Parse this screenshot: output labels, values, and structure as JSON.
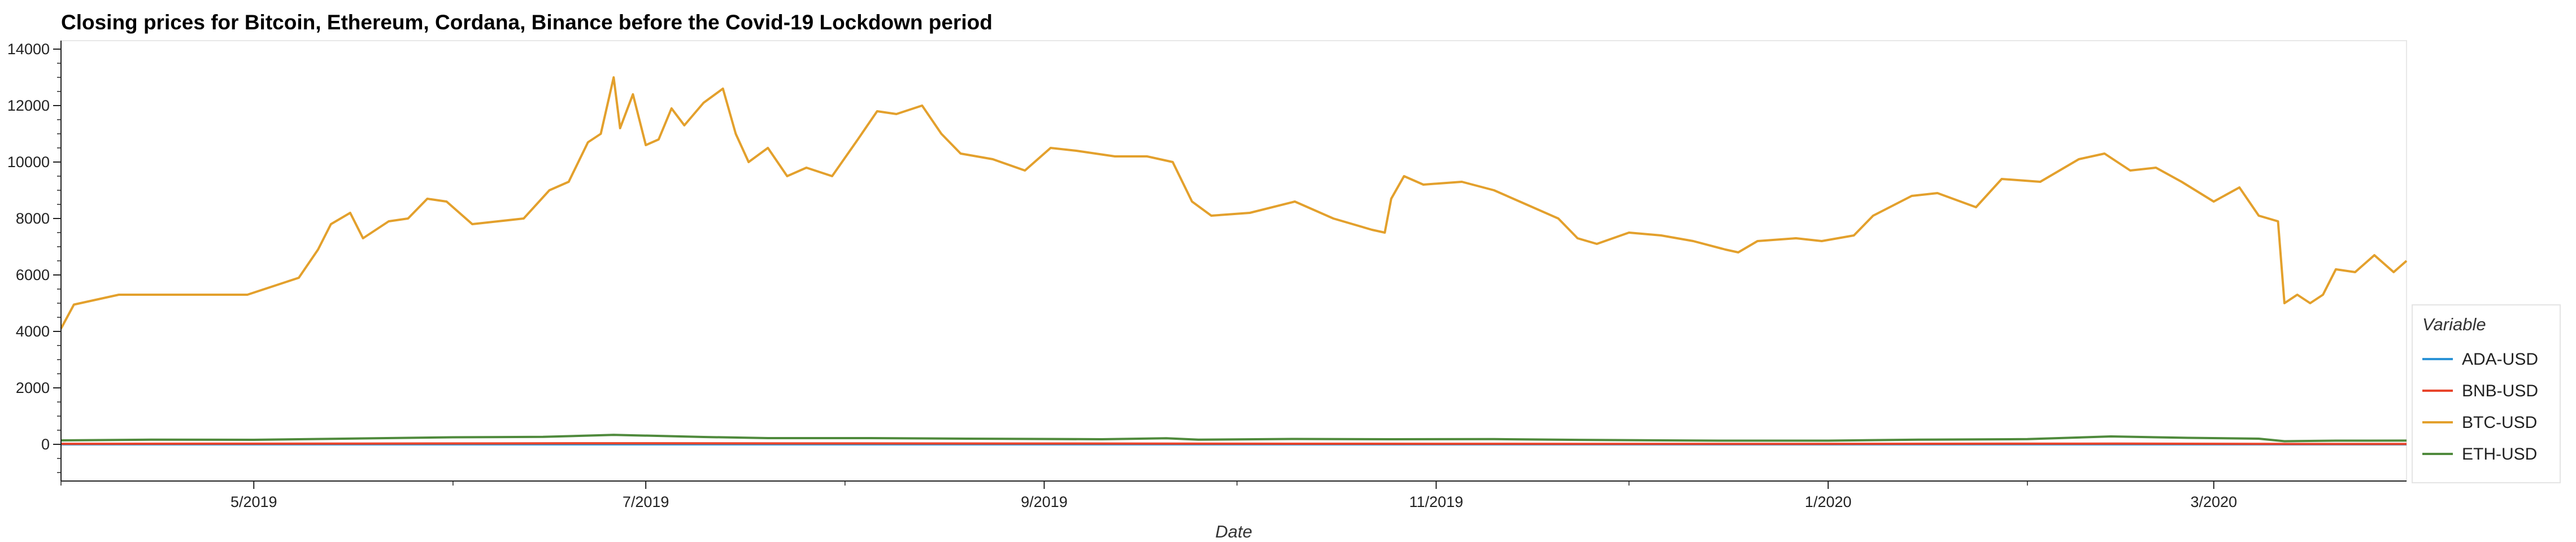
{
  "chart_data": {
    "type": "line",
    "title": "Closing prices for Bitcoin, Ethereum, Cordana, Binance before the Covid-19 Lockdown period",
    "xlabel": "Date",
    "ylabel": "",
    "x_start": "2019-04-01",
    "x_end": "2020-03-31",
    "ylim": [
      -1300,
      14300
    ],
    "y_ticks": [
      0,
      2000,
      4000,
      6000,
      8000,
      10000,
      12000,
      14000
    ],
    "x_ticks": [
      {
        "label": "5/2019",
        "date": "2019-05-01"
      },
      {
        "label": "7/2019",
        "date": "2019-07-01"
      },
      {
        "label": "9/2019",
        "date": "2019-09-01"
      },
      {
        "label": "11/2019",
        "date": "2019-11-01"
      },
      {
        "label": "1/2020",
        "date": "2020-01-01"
      },
      {
        "label": "3/2020",
        "date": "2020-03-01"
      }
    ],
    "legend_title": "Variable",
    "legend_position": "right",
    "series": [
      {
        "name": "ADA-USD",
        "color": "#2b93d6",
        "points": [
          [
            "2019-04-01",
            0.09
          ],
          [
            "2019-06-15",
            0.1
          ],
          [
            "2019-09-01",
            0.05
          ],
          [
            "2019-12-01",
            0.04
          ],
          [
            "2020-02-15",
            0.08
          ],
          [
            "2020-03-31",
            0.03
          ]
        ]
      },
      {
        "name": "BNB-USD",
        "color": "#e8452c",
        "points": [
          [
            "2019-04-01",
            17
          ],
          [
            "2019-05-15",
            25
          ],
          [
            "2019-06-22",
            38
          ],
          [
            "2019-08-15",
            29
          ],
          [
            "2019-10-15",
            19
          ],
          [
            "2019-12-15",
            14
          ],
          [
            "2020-02-15",
            25
          ],
          [
            "2020-03-13",
            12
          ],
          [
            "2020-03-31",
            13
          ]
        ]
      },
      {
        "name": "BTC-USD",
        "color": "#e3a02c",
        "points": [
          [
            "2019-04-01",
            4100
          ],
          [
            "2019-04-03",
            4950
          ],
          [
            "2019-04-10",
            5300
          ],
          [
            "2019-04-20",
            5300
          ],
          [
            "2019-04-30",
            5300
          ],
          [
            "2019-05-08",
            5900
          ],
          [
            "2019-05-11",
            6900
          ],
          [
            "2019-05-13",
            7800
          ],
          [
            "2019-05-16",
            8200
          ],
          [
            "2019-05-18",
            7300
          ],
          [
            "2019-05-22",
            7900
          ],
          [
            "2019-05-25",
            8000
          ],
          [
            "2019-05-28",
            8700
          ],
          [
            "2019-05-31",
            8600
          ],
          [
            "2019-06-04",
            7800
          ],
          [
            "2019-06-08",
            7900
          ],
          [
            "2019-06-12",
            8000
          ],
          [
            "2019-06-16",
            9000
          ],
          [
            "2019-06-19",
            9300
          ],
          [
            "2019-06-22",
            10700
          ],
          [
            "2019-06-24",
            11000
          ],
          [
            "2019-06-26",
            13000
          ],
          [
            "2019-06-27",
            11200
          ],
          [
            "2019-06-29",
            12400
          ],
          [
            "2019-07-01",
            10600
          ],
          [
            "2019-07-03",
            10800
          ],
          [
            "2019-07-05",
            11900
          ],
          [
            "2019-07-07",
            11300
          ],
          [
            "2019-07-10",
            12100
          ],
          [
            "2019-07-13",
            12600
          ],
          [
            "2019-07-15",
            11000
          ],
          [
            "2019-07-17",
            10000
          ],
          [
            "2019-07-20",
            10500
          ],
          [
            "2019-07-23",
            9500
          ],
          [
            "2019-07-26",
            9800
          ],
          [
            "2019-07-30",
            9500
          ],
          [
            "2019-08-03",
            10800
          ],
          [
            "2019-08-06",
            11800
          ],
          [
            "2019-08-09",
            11700
          ],
          [
            "2019-08-13",
            12000
          ],
          [
            "2019-08-16",
            11000
          ],
          [
            "2019-08-19",
            10300
          ],
          [
            "2019-08-24",
            10100
          ],
          [
            "2019-08-29",
            9700
          ],
          [
            "2019-09-02",
            10500
          ],
          [
            "2019-09-06",
            10400
          ],
          [
            "2019-09-12",
            10200
          ],
          [
            "2019-09-17",
            10200
          ],
          [
            "2019-09-21",
            10000
          ],
          [
            "2019-09-24",
            8600
          ],
          [
            "2019-09-27",
            8100
          ],
          [
            "2019-10-03",
            8200
          ],
          [
            "2019-10-10",
            8600
          ],
          [
            "2019-10-16",
            8000
          ],
          [
            "2019-10-22",
            7600
          ],
          [
            "2019-10-24",
            7500
          ],
          [
            "2019-10-25",
            8700
          ],
          [
            "2019-10-27",
            9500
          ],
          [
            "2019-10-30",
            9200
          ],
          [
            "2019-11-05",
            9300
          ],
          [
            "2019-11-10",
            9000
          ],
          [
            "2019-11-15",
            8500
          ],
          [
            "2019-11-20",
            8000
          ],
          [
            "2019-11-23",
            7300
          ],
          [
            "2019-11-26",
            7100
          ],
          [
            "2019-12-01",
            7500
          ],
          [
            "2019-12-06",
            7400
          ],
          [
            "2019-12-11",
            7200
          ],
          [
            "2019-12-16",
            6900
          ],
          [
            "2019-12-18",
            6800
          ],
          [
            "2019-12-21",
            7200
          ],
          [
            "2019-12-27",
            7300
          ],
          [
            "2019-12-31",
            7200
          ],
          [
            "2020-01-05",
            7400
          ],
          [
            "2020-01-08",
            8100
          ],
          [
            "2020-01-14",
            8800
          ],
          [
            "2020-01-18",
            8900
          ],
          [
            "2020-01-24",
            8400
          ],
          [
            "2020-01-28",
            9400
          ],
          [
            "2020-02-03",
            9300
          ],
          [
            "2020-02-09",
            10100
          ],
          [
            "2020-02-13",
            10300
          ],
          [
            "2020-02-17",
            9700
          ],
          [
            "2020-02-21",
            9800
          ],
          [
            "2020-02-25",
            9300
          ],
          [
            "2020-03-01",
            8600
          ],
          [
            "2020-03-05",
            9100
          ],
          [
            "2020-03-08",
            8100
          ],
          [
            "2020-03-11",
            7900
          ],
          [
            "2020-03-12",
            5000
          ],
          [
            "2020-03-14",
            5300
          ],
          [
            "2020-03-16",
            5000
          ],
          [
            "2020-03-18",
            5300
          ],
          [
            "2020-03-20",
            6200
          ],
          [
            "2020-03-23",
            6100
          ],
          [
            "2020-03-26",
            6700
          ],
          [
            "2020-03-29",
            6100
          ],
          [
            "2020-03-31",
            6500
          ]
        ]
      },
      {
        "name": "ETH-USD",
        "color": "#4f8a3c",
        "points": [
          [
            "2019-04-01",
            141
          ],
          [
            "2019-04-15",
            165
          ],
          [
            "2019-05-01",
            160
          ],
          [
            "2019-05-15",
            200
          ],
          [
            "2019-06-01",
            250
          ],
          [
            "2019-06-15",
            265
          ],
          [
            "2019-06-26",
            336
          ],
          [
            "2019-07-10",
            260
          ],
          [
            "2019-07-20",
            220
          ],
          [
            "2019-08-05",
            220
          ],
          [
            "2019-08-20",
            200
          ],
          [
            "2019-09-10",
            180
          ],
          [
            "2019-09-20",
            215
          ],
          [
            "2019-09-25",
            165
          ],
          [
            "2019-10-10",
            190
          ],
          [
            "2019-10-25",
            180
          ],
          [
            "2019-11-10",
            185
          ],
          [
            "2019-11-25",
            155
          ],
          [
            "2019-12-15",
            130
          ],
          [
            "2020-01-01",
            130
          ],
          [
            "2020-01-15",
            165
          ],
          [
            "2020-02-01",
            185
          ],
          [
            "2020-02-14",
            280
          ],
          [
            "2020-02-26",
            230
          ],
          [
            "2020-03-08",
            200
          ],
          [
            "2020-03-12",
            110
          ],
          [
            "2020-03-20",
            130
          ],
          [
            "2020-03-31",
            133
          ]
        ]
      }
    ]
  }
}
